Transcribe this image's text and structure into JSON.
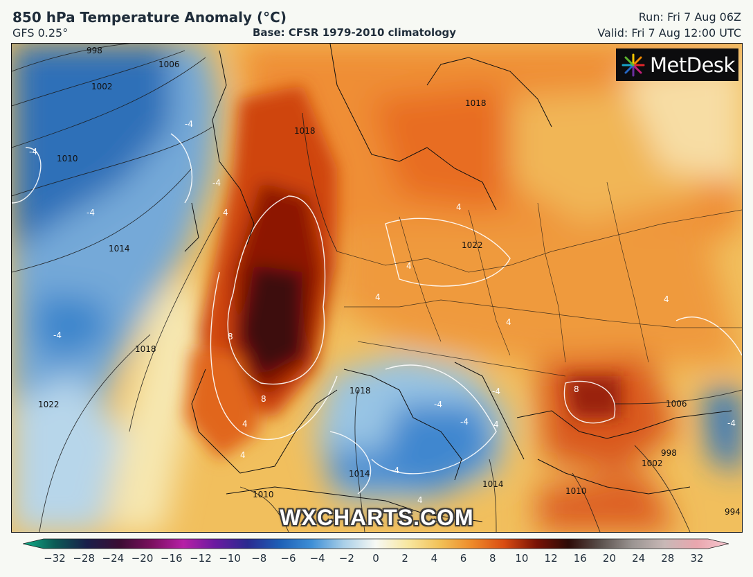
{
  "header": {
    "title": "850 hPa Temperature Anomaly (°C)",
    "model": "GFS 0.25°",
    "base": "Base: CFSR 1979-2010 climatology",
    "run": "Run: Fri 7 Aug 06Z",
    "valid": "Valid: Fri 7 Aug 12:00 UTC"
  },
  "logo": {
    "text": "MetDesk"
  },
  "watermark": "WXCHARTS.COM",
  "map": {
    "isobar_labels": [
      "998",
      "1002",
      "1006",
      "1010",
      "1014",
      "1018",
      "1022",
      "1018",
      "1018",
      "1022",
      "1018",
      "1014",
      "1010",
      "1006",
      "1002",
      "998",
      "1010",
      "1014",
      "994"
    ],
    "anomaly_labels": [
      "-4",
      "-4",
      "-4",
      "-4",
      "-4",
      "4",
      "4",
      "4",
      "4",
      "8",
      "8",
      "8",
      "4",
      "4",
      "4",
      "4",
      "-4",
      "-4",
      "-4",
      "-4",
      "4",
      "4",
      "-4"
    ]
  },
  "colorbar": {
    "tick_labels": [
      "−32",
      "−28",
      "−24",
      "−20",
      "−16",
      "−12",
      "−10",
      "−8",
      "−6",
      "−4",
      "−2",
      "0",
      "2",
      "4",
      "6",
      "8",
      "10",
      "12",
      "16",
      "20",
      "24",
      "28",
      "32"
    ],
    "stops": [
      "#10b088",
      "#0b5a55",
      "#1a1f4a",
      "#3a0d33",
      "#7a0f5e",
      "#b620a6",
      "#6a1aa0",
      "#2b2a90",
      "#1d5fb6",
      "#3e8fd6",
      "#a9cfe8",
      "#f7f9f4",
      "#f8e7a0",
      "#f2c157",
      "#ee8a2a",
      "#d94c12",
      "#7a1305",
      "#2d0b07",
      "#5a504c",
      "#9b9592",
      "#c8b8b6",
      "#e9a6ae",
      "#f6c9d0"
    ]
  }
}
